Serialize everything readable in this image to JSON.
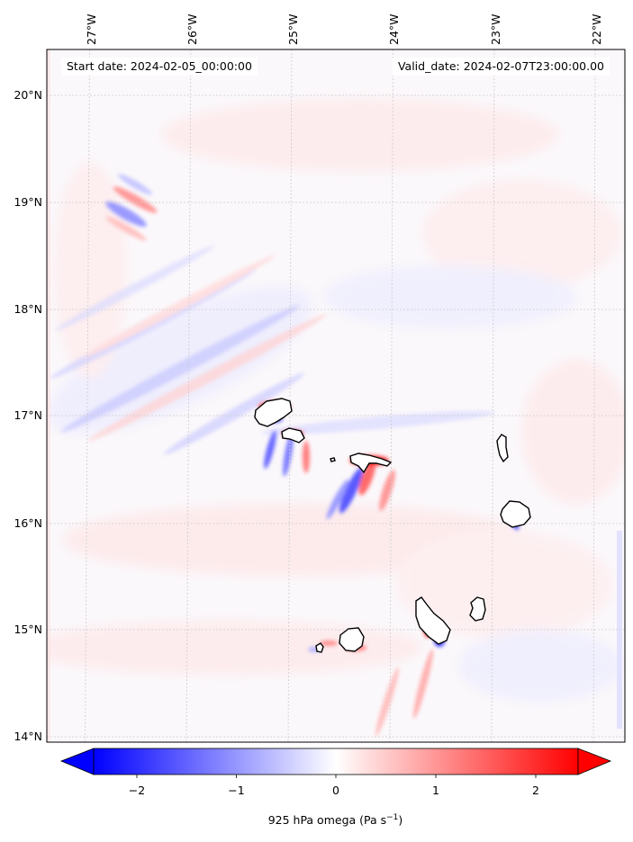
{
  "header": {
    "start_date": "Start date: 2024-02-05_00:00:00",
    "valid_date": "Valid_date: 2024-02-07T23:00:00.00"
  },
  "map": {
    "projection": "lat-lon",
    "lon_range": [
      -27.3,
      -21.75
    ],
    "lat_range": [
      13.95,
      20.45
    ],
    "lon_ticks": [
      "27°W",
      "26°W",
      "25°W",
      "24°W",
      "23°W",
      "22°W"
    ],
    "lon_tick_values": [
      -27,
      -26,
      -25,
      -24,
      -23,
      -22
    ],
    "lat_ticks": [
      "20°N",
      "19°N",
      "18°N",
      "17°N",
      "16°N",
      "15°N",
      "14°N"
    ],
    "lat_tick_values": [
      20,
      19,
      18,
      17,
      16,
      15,
      14
    ],
    "gridlines": true,
    "field": "925 hPa omega",
    "islands": [
      {
        "name": "Santo Antão",
        "center": [
          -25.17,
          17.05
        ]
      },
      {
        "name": "São Vicente",
        "center": [
          -24.95,
          16.85
        ]
      },
      {
        "name": "Santa Luzia",
        "center": [
          -24.72,
          16.76
        ]
      },
      {
        "name": "São Nicolau",
        "center": [
          -24.27,
          16.6
        ]
      },
      {
        "name": "Sal",
        "center": [
          -22.93,
          16.73
        ]
      },
      {
        "name": "Boa Vista",
        "center": [
          -22.83,
          16.09
        ]
      },
      {
        "name": "Maio",
        "center": [
          -23.15,
          15.2
        ]
      },
      {
        "name": "Santiago",
        "center": [
          -23.63,
          15.1
        ]
      },
      {
        "name": "Fogo",
        "center": [
          -24.38,
          14.92
        ]
      },
      {
        "name": "Brava",
        "center": [
          -24.71,
          14.85
        ]
      }
    ]
  },
  "colorbar": {
    "label": "925 hPa omega (Pa s",
    "label_sup": "−1",
    "label_end": ")",
    "ticks": [
      "−2",
      "−1",
      "0",
      "1",
      "2"
    ],
    "tick_values": [
      -2,
      -1,
      0,
      1,
      2
    ],
    "range": [
      -2.6,
      2.6
    ],
    "color_low": "#0000ff",
    "color_mid": "#ffffff",
    "color_high": "#ff0000",
    "extend": "both"
  }
}
